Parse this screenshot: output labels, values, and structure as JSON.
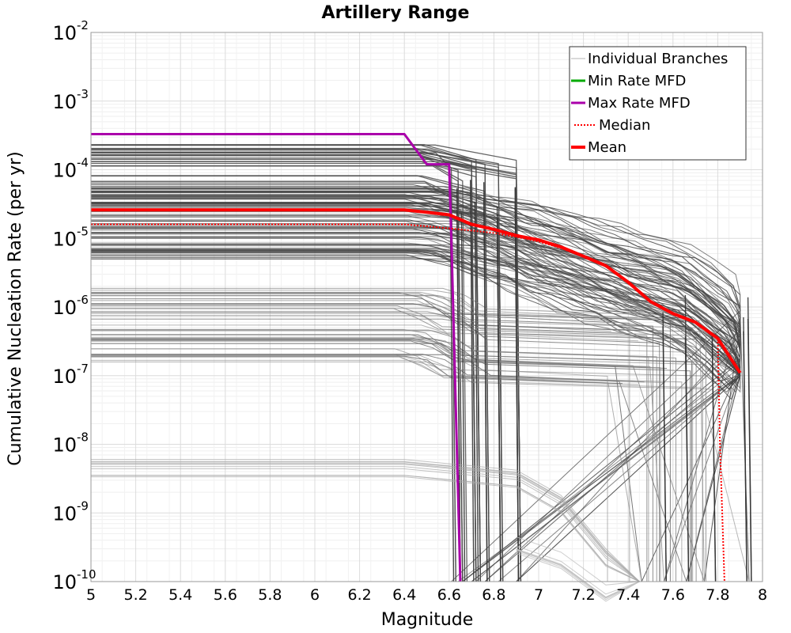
{
  "chart_data": {
    "type": "line",
    "title": "Artillery Range",
    "xlabel": "Magnitude",
    "ylabel": "Cumulative Nucleation Rate (per yr)",
    "xlim": [
      5,
      8
    ],
    "ylim": [
      1e-10,
      0.01
    ],
    "yscale": "log",
    "grid": true,
    "legend_position": "top-right",
    "x_ticks": [
      "5",
      "5.2",
      "5.4",
      "5.6",
      "5.8",
      "6",
      "6.2",
      "6.4",
      "6.6",
      "6.8",
      "7",
      "7.2",
      "7.4",
      "7.6",
      "7.8",
      "8"
    ],
    "y_ticks": [
      {
        "base": "10",
        "exp": "-10",
        "value": 1e-10
      },
      {
        "base": "10",
        "exp": "-9",
        "value": 1e-09
      },
      {
        "base": "10",
        "exp": "-8",
        "value": 1e-08
      },
      {
        "base": "10",
        "exp": "-7",
        "value": 1e-07
      },
      {
        "base": "10",
        "exp": "-6",
        "value": 1e-06
      },
      {
        "base": "10",
        "exp": "-5",
        "value": 1e-05
      },
      {
        "base": "10",
        "exp": "-4",
        "value": 0.0001
      },
      {
        "base": "10",
        "exp": "-3",
        "value": 0.001
      },
      {
        "base": "10",
        "exp": "-2",
        "value": 0.01
      }
    ],
    "legend": [
      {
        "label": "Individual Branches",
        "color": "#b4b4b4",
        "style": "thin"
      },
      {
        "label": "Min Rate MFD",
        "color": "#00aa00",
        "style": "solid"
      },
      {
        "label": "Max Rate MFD",
        "color": "#aa00aa",
        "style": "solid"
      },
      {
        "label": "Median",
        "color": "#ff0000",
        "style": "dotted"
      },
      {
        "label": "Mean",
        "color": "#ff0000",
        "style": "thick"
      }
    ],
    "series": [
      {
        "name": "Max Rate MFD",
        "color": "#aa00aa",
        "x": [
          5.0,
          6.4,
          6.5,
          6.6,
          6.61,
          6.65
        ],
        "y": [
          0.00033,
          0.00033,
          0.00012,
          0.00012,
          1e-05,
          1e-10
        ]
      },
      {
        "name": "Mean",
        "color": "#ff0000",
        "x": [
          5.0,
          6.4,
          6.5,
          6.6,
          6.7,
          6.8,
          6.9,
          7.0,
          7.1,
          7.2,
          7.3,
          7.4,
          7.5,
          7.6,
          7.7,
          7.8,
          7.9
        ],
        "y": [
          2.6e-05,
          2.6e-05,
          2.4e-05,
          2.2e-05,
          1.6e-05,
          1.35e-05,
          1.1e-05,
          9.5e-06,
          7.5e-06,
          5.5e-06,
          4e-06,
          2.3e-06,
          1.2e-06,
          8e-07,
          6e-07,
          3.5e-07,
          1.1e-07
        ]
      },
      {
        "name": "Median",
        "color": "#ff0000",
        "x": [
          5.0,
          6.4,
          6.6,
          6.7,
          6.8,
          6.9,
          7.0,
          7.1,
          7.2,
          7.3,
          7.4,
          7.5,
          7.6,
          7.7,
          7.8,
          7.81,
          7.83
        ],
        "y": [
          1.6e-05,
          1.6e-05,
          1.4e-05,
          1.3e-05,
          1.2e-05,
          1.05e-05,
          9e-06,
          7.2e-06,
          5.4e-06,
          3.9e-06,
          2.3e-06,
          1.2e-06,
          8e-07,
          6e-07,
          3.5e-07,
          1e-08,
          1e-10
        ]
      }
    ]
  }
}
